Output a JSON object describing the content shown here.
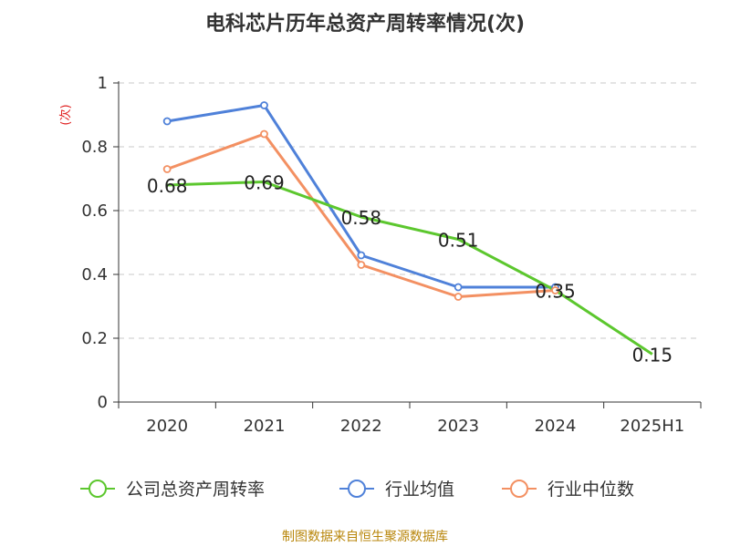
{
  "title": "电科芯片历年总资产周转率情况(次)",
  "source": "制图数据来自恒生聚源数据库",
  "chart_data": {
    "type": "line",
    "title": "电科芯片历年总资产周转率情况(次)",
    "ylabel": "(次)",
    "categories": [
      "2020",
      "2021",
      "2022",
      "2023",
      "2024",
      "2025H1"
    ],
    "ylim": [
      0,
      1
    ],
    "yticks": [
      0,
      0.2,
      0.4,
      0.6,
      0.8,
      1
    ],
    "ytick_labels": [
      "0",
      "0.2",
      "0.4",
      "0.6",
      "0.8",
      "1"
    ],
    "grid": true,
    "legend_position": "bottom",
    "series": [
      {
        "name": "公司总资产周转率",
        "color": "#5cc72e",
        "values": [
          0.68,
          0.69,
          0.58,
          0.51,
          0.35,
          0.15
        ],
        "labels": [
          "0.68",
          "0.69",
          "0.58",
          "0.51",
          "0.35",
          "0.15"
        ]
      },
      {
        "name": "行业均值",
        "color": "#4f81d9",
        "values": [
          0.88,
          0.93,
          0.46,
          0.36,
          0.36,
          null
        ]
      },
      {
        "name": "行业中位数",
        "color": "#f39062",
        "values": [
          0.73,
          0.84,
          0.43,
          0.33,
          0.35,
          null
        ]
      }
    ]
  }
}
